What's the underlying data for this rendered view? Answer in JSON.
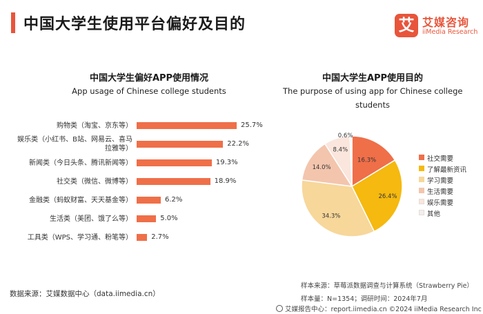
{
  "header": {
    "title": "中国大学生使用平台偏好及目的",
    "logo_mark": "艾",
    "logo_cn": "艾媒咨询",
    "logo_en": "iiMedia Research"
  },
  "chart_data": [
    {
      "type": "bar",
      "orientation": "horizontal",
      "title": "中国大学生偏好APP使用情况",
      "subtitle": "App usage of Chinese college students",
      "categories": [
        "购物类（淘宝、京东等）",
        "娱乐类（小红书、B站、网易云、喜马拉雅等）",
        "新闻类（今日头条、腾讯新闻等）",
        "社交类（微信、微博等）",
        "金融类（蚂蚁财富、天天基金等）",
        "生活类（美团、饿了么等）",
        "工具类（WPS、学习通、粉笔等）"
      ],
      "category_lines": [
        [
          "购物类（淘宝、京东等）"
        ],
        [
          "娱乐类（小红书、B站、网易云、喜马",
          "拉雅等）"
        ],
        [
          "新闻类（今日头条、腾讯新闻等）"
        ],
        [
          "社交类（微信、微博等）"
        ],
        [
          "金融类（蚂蚁财富、天天基金等）"
        ],
        [
          "生活类（美团、饿了么等）"
        ],
        [
          "工具类（WPS、学习通、粉笔等）"
        ]
      ],
      "values": [
        25.7,
        22.2,
        19.3,
        18.9,
        6.2,
        5.0,
        2.7
      ],
      "value_labels": [
        "25.7%",
        "22.2%",
        "19.3%",
        "18.9%",
        "6.2%",
        "5.0%",
        "2.7%"
      ],
      "color": "#ef6f49",
      "grid": false
    },
    {
      "type": "pie",
      "title": "中国大学生APP使用目的",
      "subtitle": "The purpose of using app for Chinese college students",
      "subtitle_lines": [
        "The purpose of using app for Chinese college",
        "students"
      ],
      "slices": [
        {
          "label": "社交需要",
          "value": 16.3,
          "value_label": "16.3%",
          "color": "#ef6f49"
        },
        {
          "label": "了解最新资讯",
          "value": 26.4,
          "value_label": "26.4%",
          "color": "#f5b90f"
        },
        {
          "label": "学习需要",
          "value": 34.3,
          "value_label": "34.3%",
          "color": "#f7d79a"
        },
        {
          "label": "生活需要",
          "value": 14.0,
          "value_label": "14.0%",
          "color": "#f3c5ad"
        },
        {
          "label": "娱乐需要",
          "value": 8.4,
          "value_label": "8.4%",
          "color": "#fae6dc"
        },
        {
          "label": "其他",
          "value": 0.6,
          "value_label": "0.6%",
          "color": "#f1efef"
        }
      ],
      "legend_position": "right"
    }
  ],
  "footer": {
    "source_left": "数据来源：艾媒数据中心（data.iimedia.cn）",
    "sample_source": "样本来源：草莓派数据调查与计算系统（Strawberry Pie）",
    "sample_size": "样本量：N=1354；调研时间：2024年7月",
    "report_center": "艾媒报告中心：report.iimedia.cn  ©2024  iiMedia Research  Inc"
  }
}
